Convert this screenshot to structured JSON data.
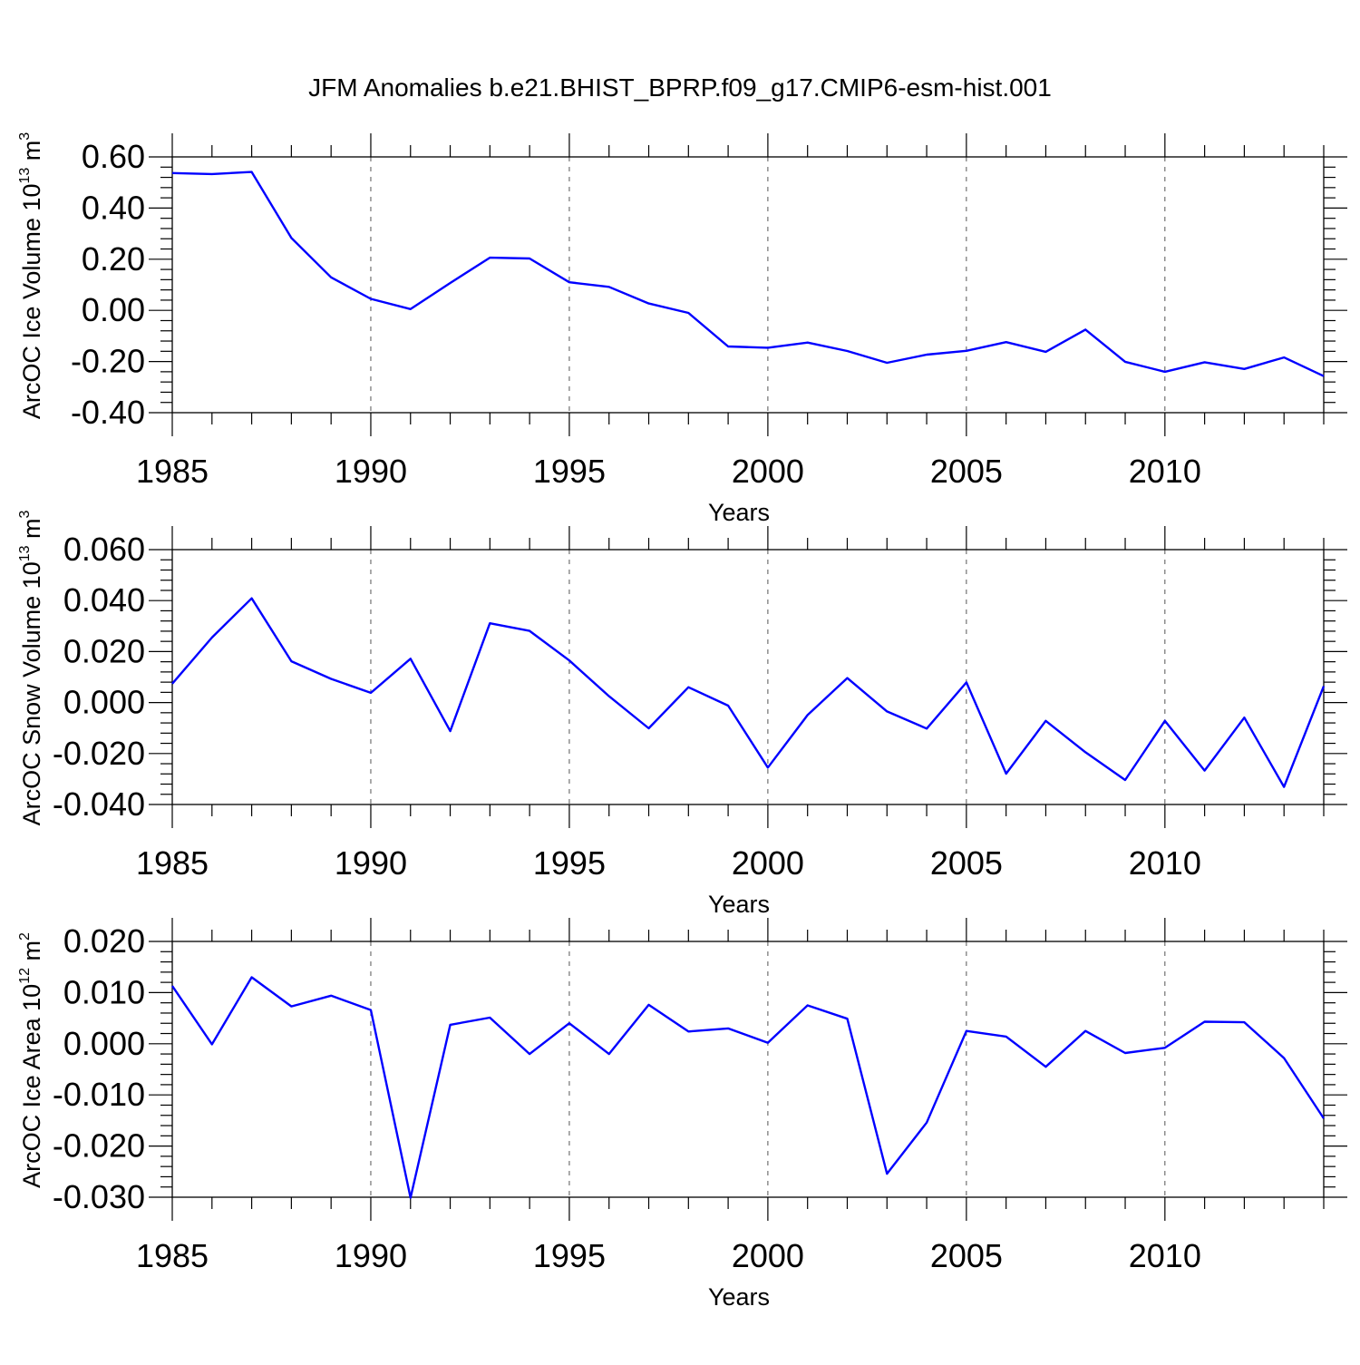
{
  "title": "JFM Anomalies b.e21.BHIST_BPRP.f09_g17.CMIP6-esm-hist.001",
  "chart_data": [
    {
      "type": "line",
      "xlabel": "Years",
      "ylabel": "ArcOC Ice Volume 10",
      "ylabel_exp": "13",
      "ylabel_unit": "m",
      "ylabel_unit_exp": "3",
      "xlim": [
        1985,
        2014
      ],
      "ylim": [
        -0.4,
        0.6
      ],
      "xticks": [
        1985,
        1990,
        1995,
        2000,
        2005,
        2010
      ],
      "yticks": [
        0.6,
        0.4,
        0.2,
        0.0,
        -0.2,
        -0.4
      ],
      "ytick_labels": [
        "0.60",
        "0.40",
        "0.20",
        "0.00",
        "-0.20",
        "-0.40"
      ],
      "grid": "vertical-dashed",
      "series": [
        {
          "color": "#0000ff",
          "x": [
            1985,
            1986,
            1987,
            1988,
            1989,
            1990,
            1991,
            1992,
            1993,
            1994,
            1995,
            1996,
            1997,
            1998,
            1999,
            2000,
            2001,
            2002,
            2003,
            2004,
            2005,
            2006,
            2007,
            2008,
            2009,
            2010,
            2011,
            2012,
            2013,
            2014
          ],
          "values": [
            0.537,
            0.533,
            0.541,
            0.283,
            0.129,
            0.045,
            0.005,
            0.107,
            0.206,
            0.203,
            0.11,
            0.092,
            0.027,
            -0.01,
            -0.141,
            -0.146,
            -0.126,
            -0.159,
            -0.205,
            -0.173,
            -0.158,
            -0.124,
            -0.162,
            -0.075,
            -0.201,
            -0.24,
            -0.203,
            -0.229,
            -0.184,
            -0.257
          ]
        }
      ]
    },
    {
      "type": "line",
      "xlabel": "Years",
      "ylabel": "ArcOC Snow Volume 10",
      "ylabel_exp": "13",
      "ylabel_unit": "m",
      "ylabel_unit_exp": "3",
      "xlim": [
        1985,
        2014
      ],
      "ylim": [
        -0.04,
        0.06
      ],
      "xticks": [
        1985,
        1990,
        1995,
        2000,
        2005,
        2010
      ],
      "yticks": [
        0.06,
        0.04,
        0.02,
        0.0,
        -0.02,
        -0.04
      ],
      "ytick_labels": [
        "0.060",
        "0.040",
        "0.020",
        "0.000",
        "-0.020",
        "-0.040"
      ],
      "grid": "vertical-dashed",
      "series": [
        {
          "color": "#0000ff",
          "x": [
            1985,
            1986,
            1987,
            1988,
            1989,
            1990,
            1991,
            1992,
            1993,
            1994,
            1995,
            1996,
            1997,
            1998,
            1999,
            2000,
            2001,
            2002,
            2003,
            2004,
            2005,
            2006,
            2007,
            2008,
            2009,
            2010,
            2011,
            2012,
            2013,
            2014
          ],
          "values": [
            0.0074,
            0.0255,
            0.0409,
            0.0162,
            0.0093,
            0.0038,
            0.0172,
            -0.0112,
            0.0311,
            0.0281,
            0.0165,
            0.0025,
            -0.0101,
            0.006,
            -0.0012,
            -0.0255,
            -0.0049,
            0.0096,
            -0.0035,
            -0.0102,
            0.0079,
            -0.0279,
            -0.0072,
            -0.0195,
            -0.0304,
            -0.0072,
            -0.0267,
            -0.0059,
            -0.0331,
            0.0064
          ]
        }
      ]
    },
    {
      "type": "line",
      "xlabel": "Years",
      "ylabel": "ArcOC Ice Area 10",
      "ylabel_exp": "12",
      "ylabel_unit": "m",
      "ylabel_unit_exp": "2",
      "xlim": [
        1985,
        2014
      ],
      "ylim": [
        -0.03,
        0.02
      ],
      "xticks": [
        1985,
        1990,
        1995,
        2000,
        2005,
        2010
      ],
      "yticks": [
        0.02,
        0.01,
        0.0,
        -0.01,
        -0.02,
        -0.03
      ],
      "ytick_labels": [
        "0.020",
        "0.010",
        "0.000",
        "-0.010",
        "-0.020",
        "-0.030"
      ],
      "grid": "vertical-dashed",
      "series": [
        {
          "color": "#0000ff",
          "x": [
            1985,
            1986,
            1987,
            1988,
            1989,
            1990,
            1991,
            1992,
            1993,
            1994,
            1995,
            1996,
            1997,
            1998,
            1999,
            2000,
            2001,
            2002,
            2003,
            2004,
            2005,
            2006,
            2007,
            2008,
            2009,
            2010,
            2011,
            2012,
            2013,
            2014
          ],
          "values": [
            0.0113,
            -0.0001,
            0.013,
            0.0073,
            0.0094,
            0.0066,
            -0.0301,
            0.0037,
            0.0051,
            -0.002,
            0.004,
            -0.002,
            0.0076,
            0.0024,
            0.003,
            0.0002,
            0.0075,
            0.0049,
            -0.0254,
            -0.0154,
            0.0025,
            0.0014,
            -0.0045,
            0.0025,
            -0.0018,
            -0.0008,
            0.0043,
            0.0042,
            -0.0028,
            -0.0146
          ]
        }
      ]
    }
  ]
}
